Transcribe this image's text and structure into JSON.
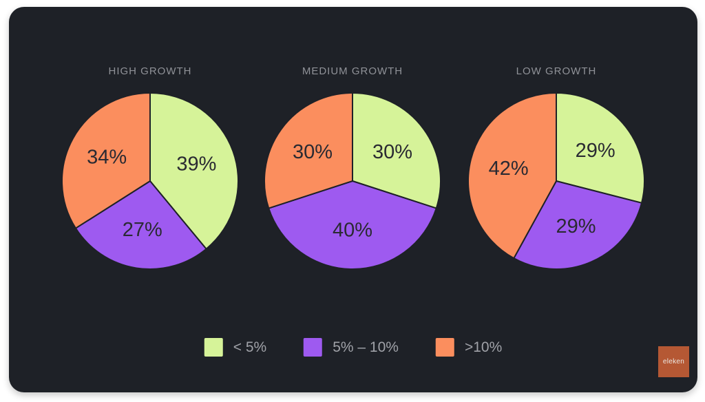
{
  "page": {
    "background": "#ffffff"
  },
  "colors": {
    "green": "#d6f399",
    "purple": "#9e5af0",
    "orange": "#fb8e5e",
    "card_background": "#1e2127",
    "slice_label_text": "#2a2a32",
    "title_text": "#909298",
    "legend_text": "#a0a2a8",
    "logo_background": "#b55834"
  },
  "chart_data": [
    {
      "type": "pie",
      "title": "HIGH GROWTH",
      "start_angle_deg": 0,
      "direction": "clockwise",
      "slices": [
        {
          "legend": "< 5%",
          "value": 39,
          "label": "39%",
          "color_key": "green"
        },
        {
          "legend": "5% – 10%",
          "value": 27,
          "label": "27%",
          "color_key": "purple"
        },
        {
          "legend": ">10%",
          "value": 34,
          "label": "34%",
          "color_key": "orange"
        }
      ]
    },
    {
      "type": "pie",
      "title": "MEDIUM GROWTH",
      "start_angle_deg": 0,
      "direction": "clockwise",
      "slices": [
        {
          "legend": "< 5%",
          "value": 30,
          "label": "30%",
          "color_key": "green"
        },
        {
          "legend": "5% – 10%",
          "value": 40,
          "label": "40%",
          "color_key": "purple"
        },
        {
          "legend": ">10%",
          "value": 30,
          "label": "30%",
          "color_key": "orange"
        }
      ]
    },
    {
      "type": "pie",
      "title": "LOW GROWTH",
      "start_angle_deg": 0,
      "direction": "clockwise",
      "slices": [
        {
          "legend": "< 5%",
          "value": 29,
          "label": "29%",
          "color_key": "green"
        },
        {
          "legend": "5% – 10%",
          "value": 29,
          "label": "29%",
          "color_key": "purple"
        },
        {
          "legend": ">10%",
          "value": 42,
          "label": "42%",
          "color_key": "orange"
        }
      ]
    }
  ],
  "legend": {
    "items": [
      {
        "label": "< 5%",
        "color_key": "green"
      },
      {
        "label": "5% – 10%",
        "color_key": "purple"
      },
      {
        "label": ">10%",
        "color_key": "orange"
      }
    ]
  },
  "branding": {
    "logo_text": "eleken"
  }
}
